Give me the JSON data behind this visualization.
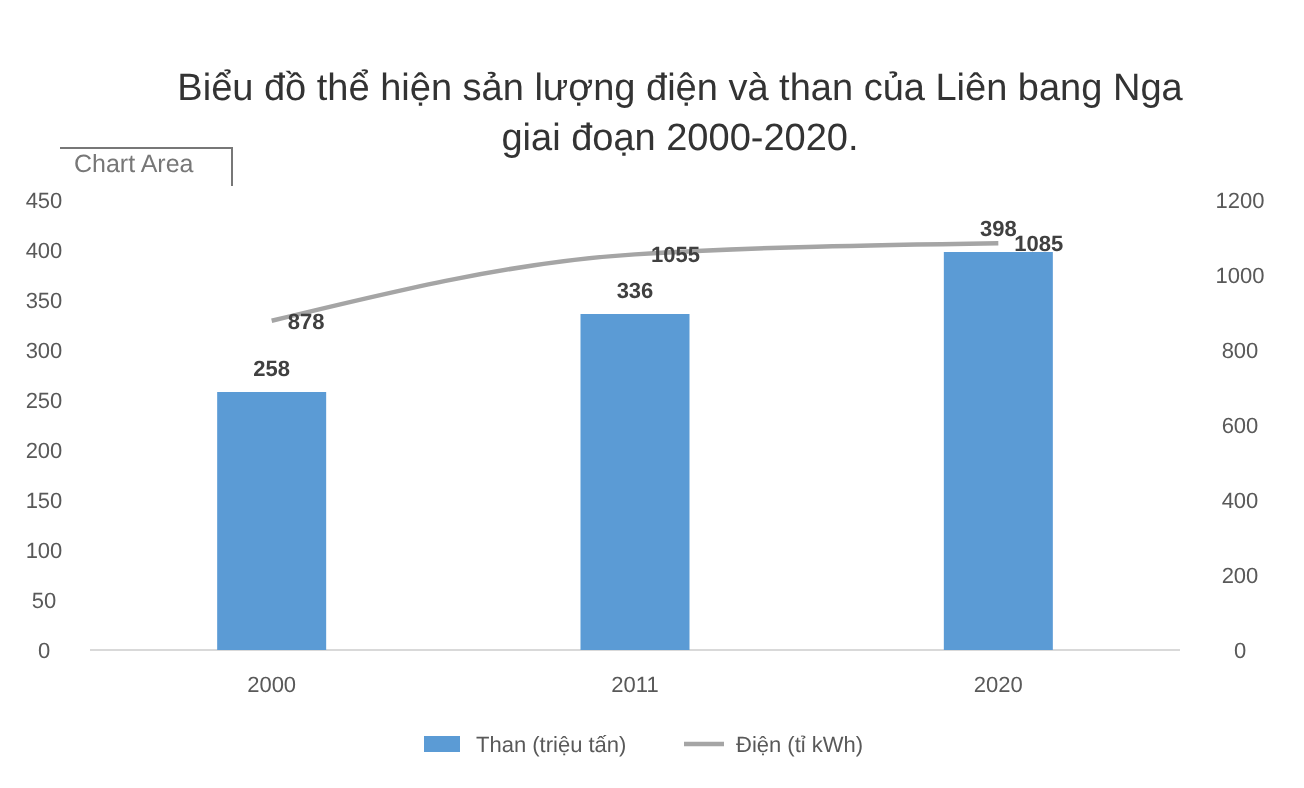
{
  "chart_data": {
    "type": "bar",
    "title": "Biểu đồ thể hiện sản lượng điện và than của Liên bang Nga\ngiai đoạn 2000-2020.",
    "categories": [
      "2000",
      "2011",
      "2020"
    ],
    "series": [
      {
        "name": "Than (triệu tấn)",
        "color": "#5b9bd5",
        "values": [
          258,
          336,
          398
        ]
      },
      {
        "name": "Điện (tỉ kWh)",
        "type": "line",
        "axis": "y2",
        "color": "#a5a5a5",
        "values": [
          878,
          1055,
          1085
        ]
      }
    ],
    "ylim": [
      0,
      450
    ],
    "yticks": [
      0,
      50,
      100,
      150,
      200,
      250,
      300,
      350,
      400,
      450
    ],
    "y2lim": [
      0,
      1200
    ],
    "y2ticks": [
      0,
      200,
      400,
      600,
      800,
      1000,
      1200
    ],
    "data_labels": true,
    "grid": false,
    "legend": "bottom",
    "marker": "none",
    "line_style": "solid",
    "annotations": [
      "Chart Area"
    ]
  }
}
